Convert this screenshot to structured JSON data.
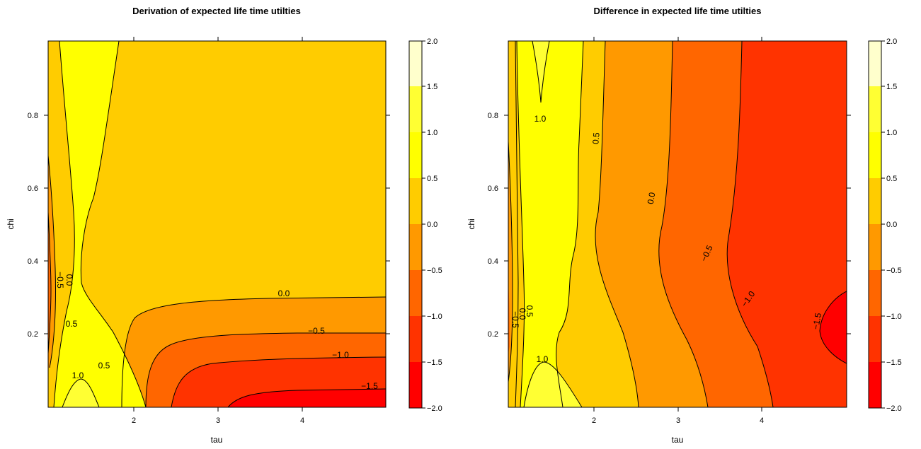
{
  "chart_data": [
    {
      "type": "heatmap",
      "subtype": "filled-contour",
      "title": "Derivation of expected life time utilties",
      "xlabel": "tau",
      "ylabel": "chi",
      "xlim": [
        1.0,
        5.0
      ],
      "ylim": [
        0.0,
        1.0
      ],
      "xticks": [
        "2",
        "3",
        "4"
      ],
      "yticks": [
        "0.2",
        "0.4",
        "0.6",
        "0.8"
      ],
      "colorbar": {
        "levels": [
          -2.0,
          -1.5,
          -1.0,
          -0.5,
          0.0,
          0.5,
          1.0,
          1.5,
          2.0
        ],
        "labels": [
          "−2.0",
          "−1.5",
          "−1.0",
          "−0.5",
          "0.0",
          "0.5",
          "1.0",
          "1.5",
          "2.0"
        ],
        "colors": [
          "#FF0000",
          "#FF3300",
          "#FF6600",
          "#FF9900",
          "#FFCC00",
          "#FFFF00",
          "#FFFF33",
          "#FFFFCC"
        ]
      },
      "contour_labels": [
        {
          "text": "0.0",
          "tau": 4.0,
          "chi": 0.305
        },
        {
          "text": "−0.5",
          "tau": 4.28,
          "chi": 0.2
        },
        {
          "text": "−1.0",
          "tau": 4.48,
          "chi": 0.135
        },
        {
          "text": "−1.5",
          "tau": 4.62,
          "chi": 0.055
        },
        {
          "text": "0.5",
          "tau": 1.27,
          "chi": 0.22
        },
        {
          "text": "0.5",
          "tau": 1.67,
          "chi": 0.105
        },
        {
          "text": "1.0",
          "tau": 1.36,
          "chi": 0.085
        },
        {
          "text": "0.0",
          "tau": 1.19,
          "chi": 0.34
        },
        {
          "text": "−0.5",
          "tau": 1.09,
          "chi": 0.34
        }
      ]
    },
    {
      "type": "heatmap",
      "subtype": "filled-contour",
      "title": "Difference in expected life time utilties",
      "xlabel": "tau",
      "ylabel": "chi",
      "xlim": [
        1.0,
        5.0
      ],
      "ylim": [
        0.0,
        1.0
      ],
      "xticks": [
        "2",
        "3",
        "4"
      ],
      "yticks": [
        "0.2",
        "0.4",
        "0.6",
        "0.8"
      ],
      "colorbar": {
        "levels": [
          -2.0,
          -1.5,
          -1.0,
          -0.5,
          0.0,
          0.5,
          1.0,
          1.5,
          2.0
        ],
        "labels": [
          "−2.0",
          "−1.5",
          "−1.0",
          "−0.5",
          "0.0",
          "0.5",
          "1.0",
          "1.5",
          "2.0"
        ],
        "colors": [
          "#FF0000",
          "#FF3300",
          "#FF6600",
          "#FF9900",
          "#FFCC00",
          "#FFFF00",
          "#FFFF33",
          "#FFFFCC"
        ]
      },
      "contour_labels": [
        {
          "text": "1.0",
          "tau": 1.42,
          "chi": 0.845
        },
        {
          "text": "0.5",
          "tau": 2.03,
          "chi": 0.74
        },
        {
          "text": "0.0",
          "tau": 2.68,
          "chi": 0.57
        },
        {
          "text": "−0.5",
          "tau": 3.35,
          "chi": 0.42
        },
        {
          "text": "−1.0",
          "tau": 4.02,
          "chi": 0.29
        },
        {
          "text": "−1.5",
          "tau": 4.8,
          "chi": 0.23
        },
        {
          "text": "0.5",
          "tau": 1.28,
          "chi": 0.26
        },
        {
          "text": "1.0",
          "tau": 1.39,
          "chi": 0.13
        },
        {
          "text": "0.0",
          "tau": 1.16,
          "chi": 0.26
        },
        {
          "text": "−0.5",
          "tau": 1.07,
          "chi": 0.24
        }
      ]
    }
  ]
}
